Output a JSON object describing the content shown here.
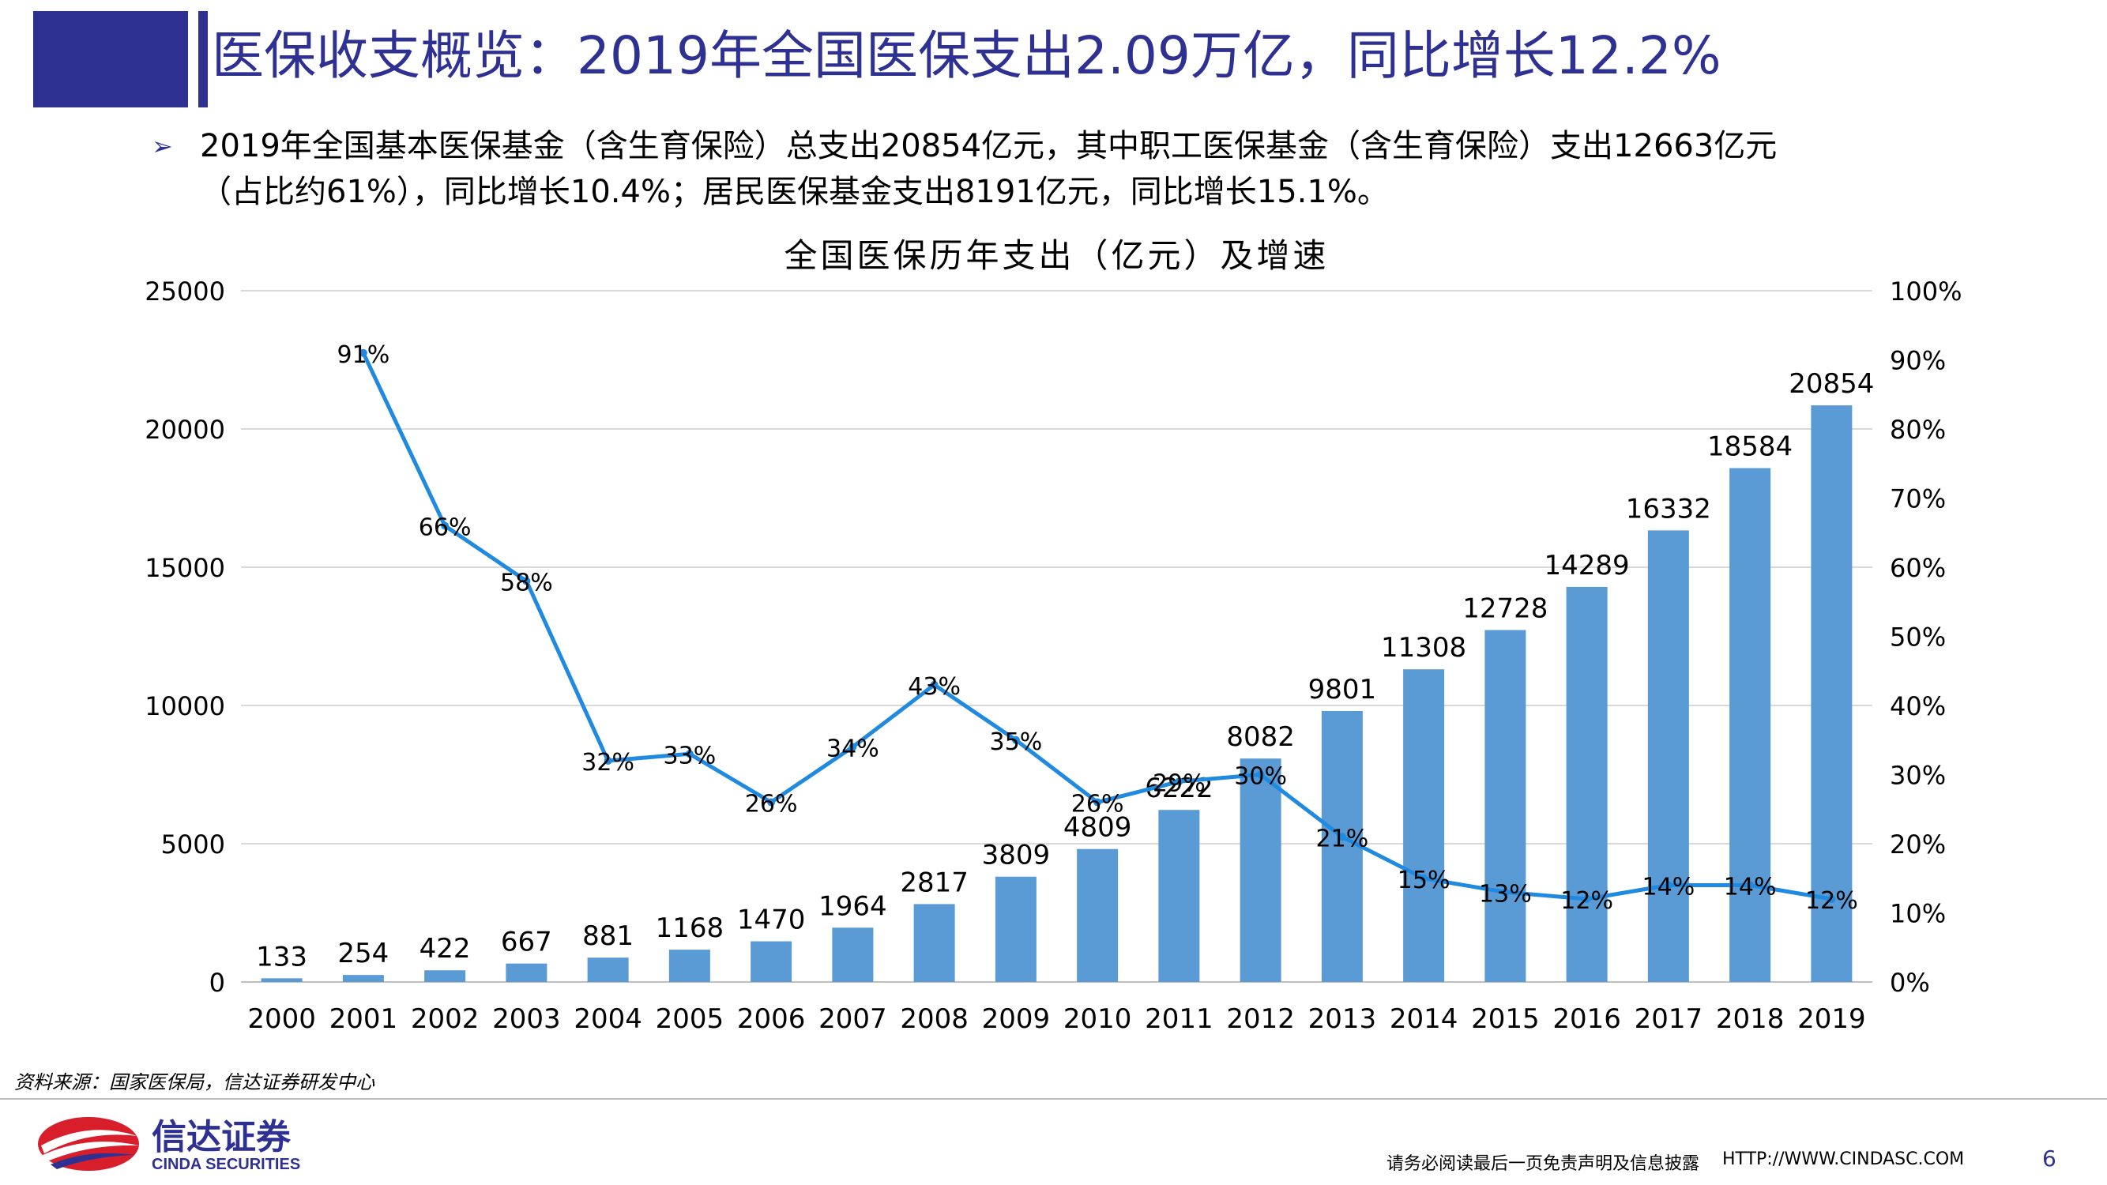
{
  "slide": {
    "title": "医保收支概览：2019年全国医保支出2.09万亿，同比增长12.2%",
    "bullet_line1": "2019年全国基本医保基金（含生育保险）总支出20854亿元，其中职工医保基金（含生育保险）支出12663亿元",
    "bullet_line2": "（占比约61%），同比增长10.4%；居民医保基金支出8191亿元，同比增长15.1%。",
    "bullet_icon": "arrow-right-icon",
    "source": "资料来源：国家医保局，信达证券研发中心",
    "logo_name": "信达证券",
    "logo_subname": "CINDA SECURITIES",
    "disclaimer": "请务必阅读最后一页免责声明及信息披露",
    "website": "HTTP://WWW.CINDASC.COM",
    "page_number": "6"
  },
  "colors": {
    "brand": "#2e3192",
    "bar": "#5b9bd5",
    "line": "#1f8ae0",
    "grid": "#d9d9d9",
    "logo_red": "#d81e2a"
  },
  "chart_data": {
    "type": "bar",
    "title": "全国医保历年支出（亿元）及增速",
    "categories": [
      "2000",
      "2001",
      "2002",
      "2003",
      "2004",
      "2005",
      "2006",
      "2007",
      "2008",
      "2009",
      "2010",
      "2011",
      "2012",
      "2013",
      "2014",
      "2015",
      "2016",
      "2017",
      "2018",
      "2019"
    ],
    "series": [
      {
        "type": "bar",
        "axis": "left",
        "values": [
          133,
          254,
          422,
          667,
          881,
          1168,
          1470,
          1964,
          2817,
          3809,
          4809,
          6222,
          8082,
          9801,
          11308,
          12728,
          14289,
          16332,
          18584,
          20854
        ]
      },
      {
        "type": "line",
        "axis": "right",
        "values": [
          null,
          91,
          66,
          58,
          32,
          33,
          26,
          34,
          43,
          35,
          26,
          29,
          30,
          21,
          15,
          13,
          12,
          14,
          14,
          12
        ]
      }
    ],
    "y_left": {
      "range": [
        0,
        25000
      ],
      "ticks": [
        0,
        5000,
        10000,
        15000,
        20000,
        25000
      ]
    },
    "y_right": {
      "range": [
        0,
        100
      ],
      "ticks": [
        0,
        10,
        20,
        30,
        40,
        50,
        60,
        70,
        80,
        90,
        100
      ],
      "tick_suffix": "%"
    },
    "grid": true
  }
}
